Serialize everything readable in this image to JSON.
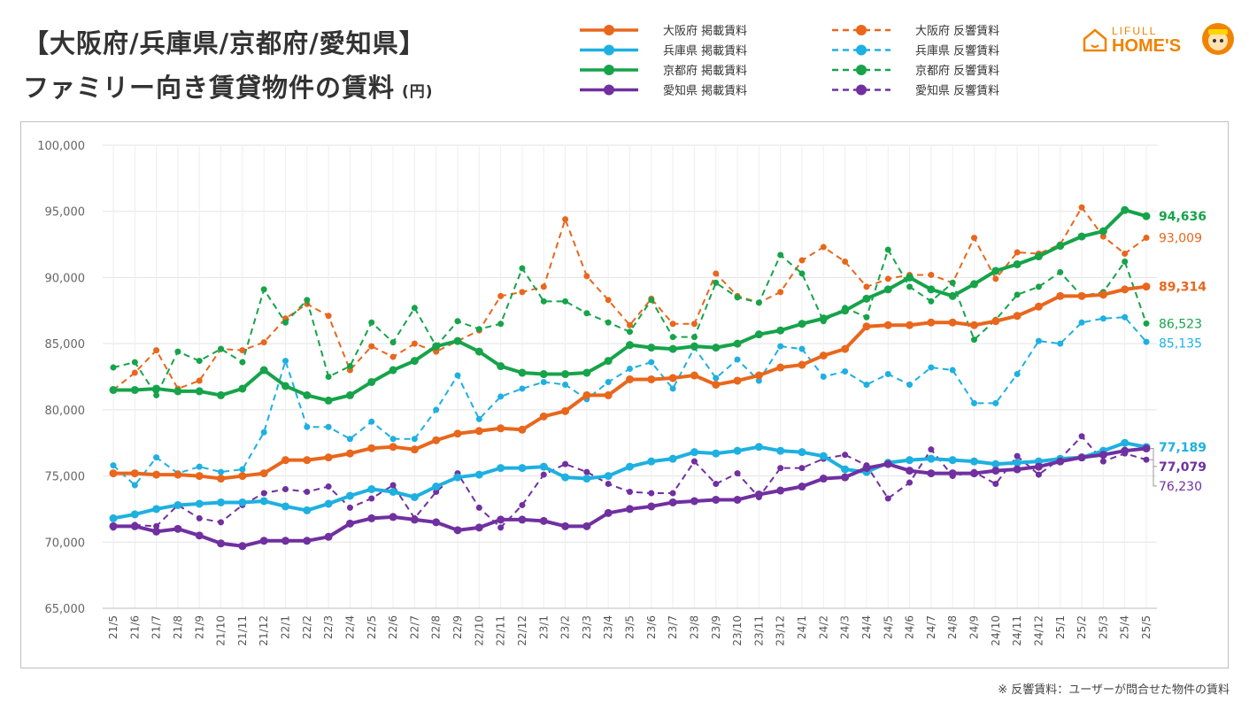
{
  "title": {
    "line1": "【大阪府/兵庫県/京都府/愛知県】",
    "line2": "ファミリー向き賃貸物件の賃料",
    "unit": "(円)"
  },
  "logo": {
    "top": "LIFULL",
    "bottom": "HOME'S"
  },
  "footnote": "※ 反響賃料：ユーザーが問合せた物件の賃料",
  "colors": {
    "osaka": "#e8671c",
    "hyogo": "#1eb0e0",
    "kyoto": "#16a34a",
    "aichi": "#7030a0"
  },
  "chart_data": {
    "type": "line",
    "xlabel": "",
    "ylabel": "",
    "ylim": [
      65000,
      100000
    ],
    "yticks": [
      "100,000",
      "95,000",
      "90,000",
      "85,000",
      "80,000",
      "75,000",
      "70,000",
      "65,000"
    ],
    "ytick_values": [
      100000,
      95000,
      90000,
      85000,
      80000,
      75000,
      70000,
      65000
    ],
    "grid": true,
    "categories": [
      "21/5",
      "21/6",
      "21/7",
      "21/8",
      "21/9",
      "21/10",
      "21/11",
      "21/12",
      "22/1",
      "22/2",
      "22/3",
      "22/4",
      "22/5",
      "22/6",
      "22/7",
      "22/8",
      "22/9",
      "22/10",
      "22/11",
      "22/12",
      "23/1",
      "23/2",
      "23/3",
      "23/4",
      "23/5",
      "23/6",
      "23/7",
      "23/8",
      "23/9",
      "23/10",
      "23/11",
      "23/12",
      "24/1",
      "24/2",
      "24/3",
      "24/4",
      "24/5",
      "24/6",
      "24/7",
      "24/8",
      "24/9",
      "24/10",
      "24/11",
      "24/12",
      "25/1",
      "25/2",
      "25/3",
      "25/4",
      "25/5"
    ],
    "series": [
      {
        "name": "大阪府 掲載賃料",
        "key": "osaka",
        "style": "solid",
        "end_label": "89,314",
        "values": [
          75200,
          75200,
          75100,
          75100,
          75000,
          74800,
          75000,
          75200,
          76200,
          76200,
          76400,
          76700,
          77100,
          77200,
          77000,
          77700,
          78200,
          78400,
          78600,
          78500,
          79500,
          79900,
          81100,
          81100,
          82300,
          82300,
          82400,
          82600,
          81900,
          82200,
          82600,
          83200,
          83400,
          84100,
          84600,
          86300,
          86400,
          86400,
          86600,
          86600,
          86400,
          86700,
          87100,
          87800,
          88600,
          88600,
          88700,
          89100,
          89314
        ]
      },
      {
        "name": "兵庫県 掲載賃料",
        "key": "hyogo",
        "style": "solid",
        "end_label": "77,189",
        "values": [
          71800,
          72100,
          72500,
          72800,
          72900,
          73000,
          73000,
          73100,
          72700,
          72400,
          72900,
          73500,
          74000,
          73800,
          73400,
          74200,
          74900,
          75100,
          75600,
          75600,
          75700,
          74900,
          74800,
          75000,
          75700,
          76100,
          76300,
          76800,
          76700,
          76900,
          77200,
          76900,
          76800,
          76500,
          75500,
          75300,
          76000,
          76200,
          76300,
          76200,
          76100,
          75900,
          76000,
          76100,
          76300,
          76400,
          76900,
          77500,
          77189
        ]
      },
      {
        "name": "京都府 掲載賃料",
        "key": "kyoto",
        "style": "solid",
        "end_label": "94,636",
        "values": [
          81500,
          81500,
          81600,
          81400,
          81400,
          81100,
          81600,
          83000,
          81800,
          81100,
          80700,
          81100,
          82100,
          83000,
          83700,
          84800,
          85200,
          84400,
          83300,
          82800,
          82700,
          82700,
          82800,
          83700,
          84900,
          84700,
          84600,
          84800,
          84700,
          85000,
          85700,
          86000,
          86500,
          86900,
          87500,
          88400,
          89100,
          90000,
          89100,
          88600,
          89500,
          90500,
          91000,
          91600,
          92400,
          93100,
          93500,
          95100,
          94636
        ]
      },
      {
        "name": "愛知県 掲載賃料",
        "key": "aichi",
        "style": "solid",
        "end_label": "77,079",
        "values": [
          71200,
          71200,
          70800,
          71000,
          70500,
          69900,
          69700,
          70100,
          70100,
          70100,
          70400,
          71400,
          71800,
          71900,
          71700,
          71500,
          70900,
          71100,
          71700,
          71700,
          71600,
          71200,
          71200,
          72200,
          72500,
          72700,
          73000,
          73100,
          73200,
          73200,
          73600,
          73900,
          74200,
          74800,
          74900,
          75600,
          75900,
          75400,
          75200,
          75200,
          75200,
          75400,
          75500,
          75700,
          76100,
          76400,
          76600,
          76900,
          77079
        ]
      },
      {
        "name": "大阪府 反響賃料",
        "key": "osaka",
        "style": "dashed",
        "end_label": "93,009",
        "values": [
          81500,
          82800,
          84500,
          81600,
          82200,
          84600,
          84500,
          85100,
          86900,
          88000,
          87100,
          83000,
          84800,
          84000,
          85000,
          84400,
          85200,
          86000,
          88600,
          88900,
          89300,
          94400,
          90100,
          88300,
          86400,
          88400,
          86500,
          86500,
          90300,
          88600,
          88100,
          88900,
          91300,
          92300,
          91200,
          89300,
          89900,
          90200,
          90200,
          89600,
          93000,
          89900,
          91900,
          91800,
          92500,
          95300,
          93100,
          91800,
          93009
        ]
      },
      {
        "name": "兵庫県 反響賃料",
        "key": "hyogo",
        "style": "dashed",
        "end_label": "85,135",
        "values": [
          75800,
          74300,
          76400,
          75200,
          75700,
          75300,
          75500,
          78300,
          83700,
          78700,
          78700,
          77800,
          79100,
          77800,
          77800,
          80000,
          82600,
          79300,
          81000,
          81600,
          82100,
          81900,
          80800,
          82100,
          83100,
          83600,
          81600,
          84700,
          82400,
          83800,
          82200,
          84800,
          84600,
          82500,
          82900,
          81900,
          82700,
          81900,
          83200,
          83000,
          80500,
          80500,
          82700,
          85200,
          85000,
          86600,
          86900,
          87000,
          85135
        ]
      },
      {
        "name": "京都府 反響賃料",
        "key": "kyoto",
        "style": "dashed",
        "end_label": "86,523",
        "values": [
          83200,
          83600,
          81100,
          84400,
          83700,
          84600,
          83600,
          89100,
          86600,
          88300,
          82500,
          83300,
          86600,
          85100,
          87700,
          84800,
          86700,
          86100,
          86500,
          90700,
          88200,
          88200,
          87300,
          86600,
          85900,
          88300,
          85500,
          85500,
          89600,
          88500,
          88100,
          91700,
          90300,
          86700,
          87700,
          87000,
          92100,
          89300,
          88200,
          89600,
          85300,
          86800,
          88700,
          89300,
          90400,
          88600,
          88900,
          91200,
          86523
        ]
      },
      {
        "name": "愛知県 反響賃料",
        "key": "aichi",
        "style": "dashed",
        "end_label": "76,230",
        "values": [
          71100,
          71300,
          71200,
          72800,
          71800,
          71500,
          72800,
          73700,
          74000,
          73800,
          74200,
          72600,
          73300,
          74300,
          71800,
          73800,
          75200,
          72600,
          71100,
          72800,
          75100,
          75900,
          75300,
          74400,
          73800,
          73700,
          73700,
          76100,
          74400,
          75200,
          73400,
          75600,
          75600,
          76300,
          76600,
          75800,
          73300,
          74500,
          77000,
          75000,
          75300,
          74400,
          76500,
          75100,
          76300,
          78000,
          76100,
          76700,
          76230
        ]
      }
    ]
  }
}
